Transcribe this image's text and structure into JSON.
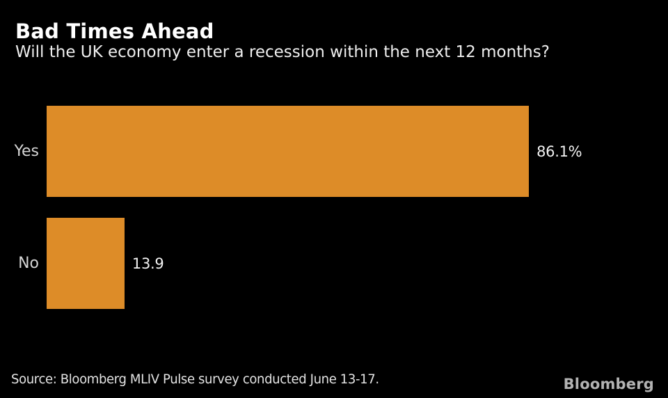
{
  "header": {
    "title": "Bad Times Ahead",
    "subtitle": "Will the UK economy enter a recession within the next 12 months?"
  },
  "chart_data": {
    "type": "bar",
    "orientation": "horizontal",
    "title": "Bad Times Ahead",
    "subtitle": "Will the UK economy enter a recession within the next 12 months?",
    "categories": [
      "Yes",
      "No"
    ],
    "values": [
      86.1,
      13.9
    ],
    "value_labels": [
      "86.1%",
      "13.9"
    ],
    "xlim": [
      0,
      100
    ],
    "grid": false,
    "legend": "none",
    "bar_color": "#dd8c28"
  },
  "footer": {
    "source": "Source: Bloomberg MLIV Pulse survey conducted June 13-17.",
    "brand": "Bloomberg"
  },
  "colors": {
    "background": "#000000",
    "bar": "#dd8c28",
    "title_text": "#ffffff",
    "subtitle_text": "#efefef",
    "category_text": "#d6d6d6",
    "value_text": "#f2f2f2",
    "source_text": "#e4e4e4",
    "brand_text": "#b3b3b3"
  }
}
